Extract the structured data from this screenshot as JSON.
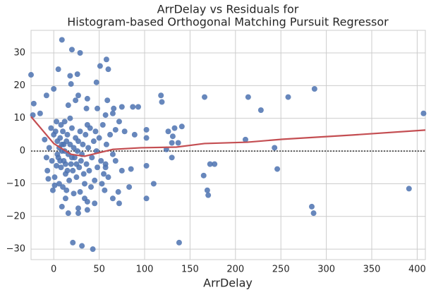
{
  "chart_data": {
    "type": "scatter",
    "title": [
      "ArrDelay vs Residuals for",
      "Histogram-based Orthogonal Matching Pursuit Regressor"
    ],
    "x_label": "ArrDelay",
    "xlim": [
      -25,
      409
    ],
    "ylim": [
      -33.2,
      36.9
    ],
    "xticks": [
      0,
      50,
      100,
      150,
      200,
      250,
      300,
      350,
      400
    ],
    "yticks": [
      {
        "value": -30,
        "label": "−30"
      },
      {
        "value": -20,
        "label": "−20"
      },
      {
        "value": -10,
        "label": "−10"
      },
      0,
      10,
      20,
      30
    ],
    "grid": true,
    "hline": 0,
    "series": [
      {
        "type": "scatter",
        "color": "#4c72b0",
        "x": [
          -25,
          9,
          20,
          29,
          58,
          60,
          51,
          5,
          18,
          26,
          19,
          47,
          166,
          214,
          258,
          287,
          228,
          407,
          211,
          243,
          246,
          391,
          284,
          286,
          138,
          21,
          31,
          43,
          102,
          110,
          102,
          165,
          172,
          177,
          169,
          170,
          118,
          119,
          141,
          133,
          126,
          131,
          137,
          130,
          124,
          130,
          102,
          102,
          87,
          93,
          75,
          66,
          72,
          89,
          68,
          78,
          59,
          54,
          -22,
          -23,
          -15,
          -8,
          0,
          -10,
          16,
          24,
          27,
          37,
          36,
          48,
          57,
          65,
          85,
          75,
          83,
          71,
          72,
          65,
          56,
          57,
          68,
          45,
          37,
          37,
          27,
          27,
          16,
          9,
          13,
          22,
          29,
          34,
          1,
          -1,
          -6,
          -8,
          3,
          0,
          2,
          4,
          5,
          6,
          7,
          8,
          9,
          10,
          11,
          12,
          13,
          14,
          15,
          16,
          17,
          18,
          19,
          20,
          21,
          22,
          23,
          24,
          25,
          26,
          27,
          28,
          29,
          30,
          31,
          32,
          33,
          35,
          36,
          38,
          39,
          40,
          42,
          44,
          45,
          47,
          48,
          50,
          52,
          55,
          58,
          60,
          62,
          65,
          -2,
          -3,
          -5,
          -7,
          1,
          3,
          6,
          8,
          10,
          12,
          14,
          18,
          4,
          7,
          9,
          11,
          13,
          15,
          20,
          25,
          34,
          37,
          41,
          46,
          53,
          57
        ],
        "values": [
          23.3,
          34,
          31,
          30,
          28,
          25,
          26,
          25,
          23,
          23.5,
          20.5,
          21,
          16.5,
          16.5,
          16.5,
          19,
          12.5,
          11.5,
          3.5,
          1,
          -5.5,
          -11.5,
          -17,
          -19,
          -28,
          -28,
          -29,
          -30,
          -4.5,
          -10,
          -14.5,
          -7.5,
          -4,
          -4,
          -12,
          -13.5,
          17,
          15,
          7.5,
          7,
          6,
          4.5,
          2.5,
          2.5,
          0.5,
          -2,
          6.5,
          4,
          13.5,
          13.5,
          13.5,
          13,
          9,
          5,
          6.5,
          6,
          15.5,
          8,
          14.5,
          11,
          11.5,
          17,
          19,
          3.5,
          14,
          15.5,
          17,
          16,
          13,
          13,
          11,
          11.5,
          -5.5,
          -6,
          -11,
          -12.5,
          -16,
          -14.5,
          -12,
          -5,
          -3,
          -16,
          -15.5,
          -18,
          -17.5,
          -19,
          -19,
          -17,
          -14.5,
          -13,
          -12.5,
          -14.5,
          -10.5,
          -12,
          -8.5,
          -2,
          -4.5,
          5,
          6,
          3,
          -2,
          1,
          4,
          -5,
          2,
          6,
          -3,
          0,
          -7,
          3,
          5,
          -1,
          -9,
          2,
          -4,
          7,
          -6,
          1,
          -2,
          4,
          -8,
          0,
          3,
          -5,
          6,
          -3,
          -1,
          2,
          -7,
          5,
          -4,
          1,
          -6,
          7,
          -2,
          3,
          -9,
          0,
          -5,
          4,
          -3,
          -7,
          2,
          -8,
          5,
          -1,
          -3,
          7,
          1,
          -6,
          -8,
          9,
          -10,
          8,
          -11,
          9,
          -12,
          10,
          -1,
          -3,
          0,
          2,
          -4,
          -6,
          -2,
          -4,
          -10,
          8,
          -11,
          6,
          -10,
          -4
        ]
      },
      {
        "type": "line",
        "color": "#c44e52",
        "x": [
          -25,
          0,
          19,
          34,
          65,
          96,
          135,
          166,
          213,
          252,
          329,
          409
        ],
        "values": [
          10.5,
          2.3,
          -1,
          -1.6,
          0.5,
          1,
          1.2,
          2.3,
          2.7,
          3.6,
          4.9,
          6.4
        ]
      }
    ]
  }
}
